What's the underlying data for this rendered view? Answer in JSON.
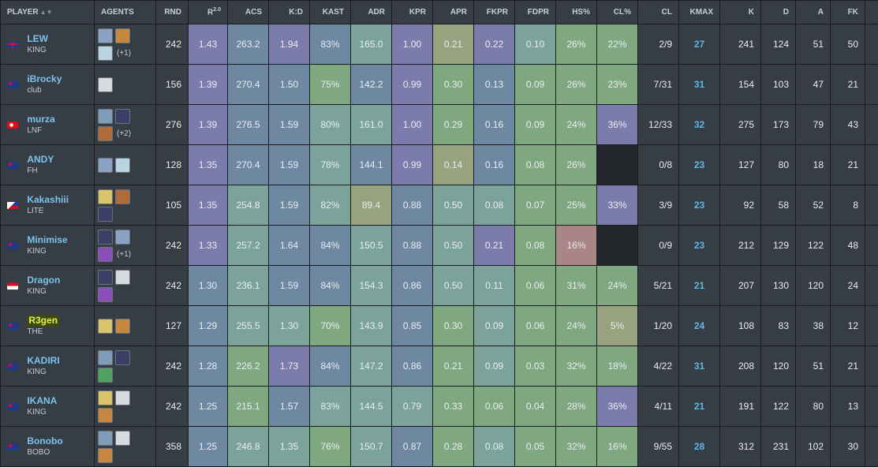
{
  "headers": {
    "player": "PLAYER",
    "agents": "AGENTS",
    "rnd": "RND",
    "rating": "R",
    "rating_sup": "2.0",
    "acs": "ACS",
    "kd": "K:D",
    "kast": "KAST",
    "adr": "ADR",
    "kpr": "KPR",
    "apr": "APR",
    "fkpr": "FKPR",
    "fdpr": "FDPR",
    "hs": "HS%",
    "clpct": "CL%",
    "cl": "CL",
    "kmax": "KMAX",
    "k": "K",
    "d": "D",
    "a": "A",
    "fk": "FK"
  },
  "colors": {
    "purple": "#7c7cac",
    "blue": "#6f88a2",
    "teal": "#7ba39a",
    "green": "#7fa880",
    "olive": "#98a27e",
    "rose": "#a98585",
    "empty": "#23272b",
    "link": "#7cc3ee",
    "kmax": "#5fb7e5"
  },
  "rows": [
    {
      "name": "LEW",
      "team": "KING",
      "flag": "uk",
      "agents": [
        "jett-icon",
        "raze-icon",
        "sage-icon"
      ],
      "more": "(+1)",
      "rnd": "242",
      "rating": "1.43",
      "acs": "263.2",
      "kd": "1.94",
      "kast": "83%",
      "adr": "165.0",
      "kpr": "1.00",
      "apr": "0.21",
      "fkpr": "0.22",
      "fdpr": "0.10",
      "hs": "26%",
      "clpct": "22%",
      "cl": "2/9",
      "kmax": "27",
      "k": "241",
      "d": "124",
      "a": "51",
      "fk": "50"
    },
    {
      "name": "iBrocky",
      "team": "club",
      "flag": "au",
      "agents": [
        "cypher-icon"
      ],
      "more": "",
      "rnd": "156",
      "rating": "1.39",
      "acs": "270.4",
      "kd": "1.50",
      "kast": "75%",
      "adr": "142.2",
      "kpr": "0.99",
      "apr": "0.30",
      "fkpr": "0.13",
      "fdpr": "0.09",
      "hs": "26%",
      "clpct": "23%",
      "cl": "7/31",
      "kmax": "31",
      "k": "154",
      "d": "103",
      "a": "47",
      "fk": "21"
    },
    {
      "name": "murza",
      "team": "LNF",
      "flag": "tr",
      "agents": [
        "sova-icon",
        "omen-icon",
        "breach-icon"
      ],
      "more": "(+2)",
      "rnd": "276",
      "rating": "1.39",
      "acs": "276.5",
      "kd": "1.59",
      "kast": "80%",
      "adr": "161.0",
      "kpr": "1.00",
      "apr": "0.29",
      "fkpr": "0.16",
      "fdpr": "0.09",
      "hs": "24%",
      "clpct": "36%",
      "cl": "12/33",
      "kmax": "32",
      "k": "275",
      "d": "173",
      "a": "79",
      "fk": "43"
    },
    {
      "name": "ANDY",
      "team": "FH",
      "flag": "au",
      "agents": [
        "jett-icon",
        "sage-icon"
      ],
      "more": "",
      "rnd": "128",
      "rating": "1.35",
      "acs": "270.4",
      "kd": "1.59",
      "kast": "78%",
      "adr": "144.1",
      "kpr": "0.99",
      "apr": "0.14",
      "fkpr": "0.16",
      "fdpr": "0.08",
      "hs": "26%",
      "clpct": "",
      "cl": "0/8",
      "kmax": "23",
      "k": "127",
      "d": "80",
      "a": "18",
      "fk": "21"
    },
    {
      "name": "Kakashiii",
      "team": "LITE",
      "flag": "ph",
      "agents": [
        "killjoy-icon",
        "breach-icon",
        "omen-icon"
      ],
      "more": "",
      "rnd": "105",
      "rating": "1.35",
      "acs": "254.8",
      "kd": "1.59",
      "kast": "82%",
      "adr": "89.4",
      "kpr": "0.88",
      "apr": "0.50",
      "fkpr": "0.08",
      "fdpr": "0.07",
      "hs": "25%",
      "clpct": "33%",
      "cl": "3/9",
      "kmax": "23",
      "k": "92",
      "d": "58",
      "a": "52",
      "fk": "8"
    },
    {
      "name": "Minimise",
      "team": "KING",
      "flag": "au",
      "agents": [
        "omen-icon",
        "jett-icon",
        "reyna-icon"
      ],
      "more": "(+1)",
      "rnd": "242",
      "rating": "1.33",
      "acs": "257.2",
      "kd": "1.64",
      "kast": "84%",
      "adr": "150.5",
      "kpr": "0.88",
      "apr": "0.50",
      "fkpr": "0.21",
      "fdpr": "0.08",
      "hs": "16%",
      "clpct": "",
      "cl": "0/9",
      "kmax": "23",
      "k": "212",
      "d": "129",
      "a": "122",
      "fk": "48"
    },
    {
      "name": "Dragon",
      "team": "KING",
      "flag": "id",
      "agents": [
        "omen-icon",
        "cypher-icon",
        "reyna-icon"
      ],
      "more": "",
      "rnd": "242",
      "rating": "1.30",
      "acs": "236.1",
      "kd": "1.59",
      "kast": "84%",
      "adr": "154.3",
      "kpr": "0.86",
      "apr": "0.50",
      "fkpr": "0.11",
      "fdpr": "0.06",
      "hs": "31%",
      "clpct": "24%",
      "cl": "5/21",
      "kmax": "21",
      "k": "207",
      "d": "130",
      "a": "120",
      "fk": "24"
    },
    {
      "name": "R3gen",
      "team": "THE",
      "flag": "au",
      "highlight": true,
      "agents": [
        "killjoy-icon",
        "raze-icon"
      ],
      "more": "",
      "rnd": "127",
      "rating": "1.29",
      "acs": "255.5",
      "kd": "1.30",
      "kast": "70%",
      "adr": "143.9",
      "kpr": "0.85",
      "apr": "0.30",
      "fkpr": "0.09",
      "fdpr": "0.06",
      "hs": "24%",
      "clpct": "5%",
      "cl": "1/20",
      "kmax": "24",
      "k": "108",
      "d": "83",
      "a": "38",
      "fk": "12"
    },
    {
      "name": "KADIRI",
      "team": "KING",
      "flag": "au",
      "agents": [
        "sova-icon",
        "omen-icon",
        "viper-icon"
      ],
      "more": "",
      "rnd": "242",
      "rating": "1.28",
      "acs": "226.2",
      "kd": "1.73",
      "kast": "84%",
      "adr": "147.2",
      "kpr": "0.86",
      "apr": "0.21",
      "fkpr": "0.09",
      "fdpr": "0.03",
      "hs": "32%",
      "clpct": "18%",
      "cl": "4/22",
      "kmax": "31",
      "k": "208",
      "d": "120",
      "a": "51",
      "fk": "21"
    },
    {
      "name": "IKANA",
      "team": "KING",
      "flag": "au",
      "agents": [
        "killjoy-icon",
        "cypher-icon",
        "raze-icon"
      ],
      "more": "",
      "rnd": "242",
      "rating": "1.25",
      "acs": "215.1",
      "kd": "1.57",
      "kast": "83%",
      "adr": "144.5",
      "kpr": "0.79",
      "apr": "0.33",
      "fkpr": "0.06",
      "fdpr": "0.04",
      "hs": "28%",
      "clpct": "36%",
      "cl": "4/11",
      "kmax": "21",
      "k": "191",
      "d": "122",
      "a": "80",
      "fk": "13"
    },
    {
      "name": "Bonobo",
      "team": "BOBO",
      "flag": "au",
      "agents": [
        "sova-icon",
        "cypher-icon",
        "raze-icon"
      ],
      "more": "",
      "rnd": "358",
      "rating": "1.25",
      "acs": "246.8",
      "kd": "1.35",
      "kast": "76%",
      "adr": "150.7",
      "kpr": "0.87",
      "apr": "0.28",
      "fkpr": "0.08",
      "fdpr": "0.05",
      "hs": "32%",
      "clpct": "16%",
      "cl": "9/55",
      "kmax": "28",
      "k": "312",
      "d": "231",
      "a": "102",
      "fk": "30"
    }
  ],
  "cell_colors": [
    {
      "rating": "purple",
      "acs": "blue",
      "kd": "purple",
      "kast": "blue",
      "adr": "teal",
      "kpr": "purple",
      "apr": "olive",
      "fkpr": "purple",
      "fdpr": "teal",
      "hs": "green",
      "clpct": "green"
    },
    {
      "rating": "purple",
      "acs": "blue",
      "kd": "blue",
      "kast": "green",
      "adr": "blue",
      "kpr": "purple",
      "apr": "green",
      "fkpr": "blue",
      "fdpr": "green",
      "hs": "green",
      "clpct": "green"
    },
    {
      "rating": "purple",
      "acs": "blue",
      "kd": "blue",
      "kast": "teal",
      "adr": "teal",
      "kpr": "purple",
      "apr": "green",
      "fkpr": "blue",
      "fdpr": "green",
      "hs": "green",
      "clpct": "purple"
    },
    {
      "rating": "purple",
      "acs": "blue",
      "kd": "blue",
      "kast": "teal",
      "adr": "blue",
      "kpr": "purple",
      "apr": "olive",
      "fkpr": "blue",
      "fdpr": "green",
      "hs": "green",
      "clpct": "empty"
    },
    {
      "rating": "purple",
      "acs": "teal",
      "kd": "blue",
      "kast": "teal",
      "adr": "olive",
      "kpr": "blue",
      "apr": "teal",
      "fkpr": "teal",
      "fdpr": "green",
      "hs": "green",
      "clpct": "purple"
    },
    {
      "rating": "purple",
      "acs": "teal",
      "kd": "blue",
      "kast": "blue",
      "adr": "teal",
      "kpr": "blue",
      "apr": "teal",
      "fkpr": "purple",
      "fdpr": "green",
      "hs": "rose",
      "clpct": "empty"
    },
    {
      "rating": "blue",
      "acs": "teal",
      "kd": "blue",
      "kast": "blue",
      "adr": "teal",
      "kpr": "blue",
      "apr": "teal",
      "fkpr": "teal",
      "fdpr": "green",
      "hs": "green",
      "clpct": "green"
    },
    {
      "rating": "blue",
      "acs": "teal",
      "kd": "teal",
      "kast": "green",
      "adr": "teal",
      "kpr": "blue",
      "apr": "green",
      "fkpr": "teal",
      "fdpr": "green",
      "hs": "green",
      "clpct": "olive"
    },
    {
      "rating": "blue",
      "acs": "green",
      "kd": "purple",
      "kast": "blue",
      "adr": "teal",
      "kpr": "blue",
      "apr": "green",
      "fkpr": "teal",
      "fdpr": "green",
      "hs": "green",
      "clpct": "green"
    },
    {
      "rating": "blue",
      "acs": "green",
      "kd": "blue",
      "kast": "teal",
      "adr": "teal",
      "kpr": "teal",
      "apr": "green",
      "fkpr": "green",
      "fdpr": "green",
      "hs": "green",
      "clpct": "purple"
    },
    {
      "rating": "blue",
      "acs": "teal",
      "kd": "teal",
      "kast": "green",
      "adr": "teal",
      "kpr": "blue",
      "apr": "green",
      "fkpr": "teal",
      "fdpr": "green",
      "hs": "green",
      "clpct": "green"
    }
  ]
}
